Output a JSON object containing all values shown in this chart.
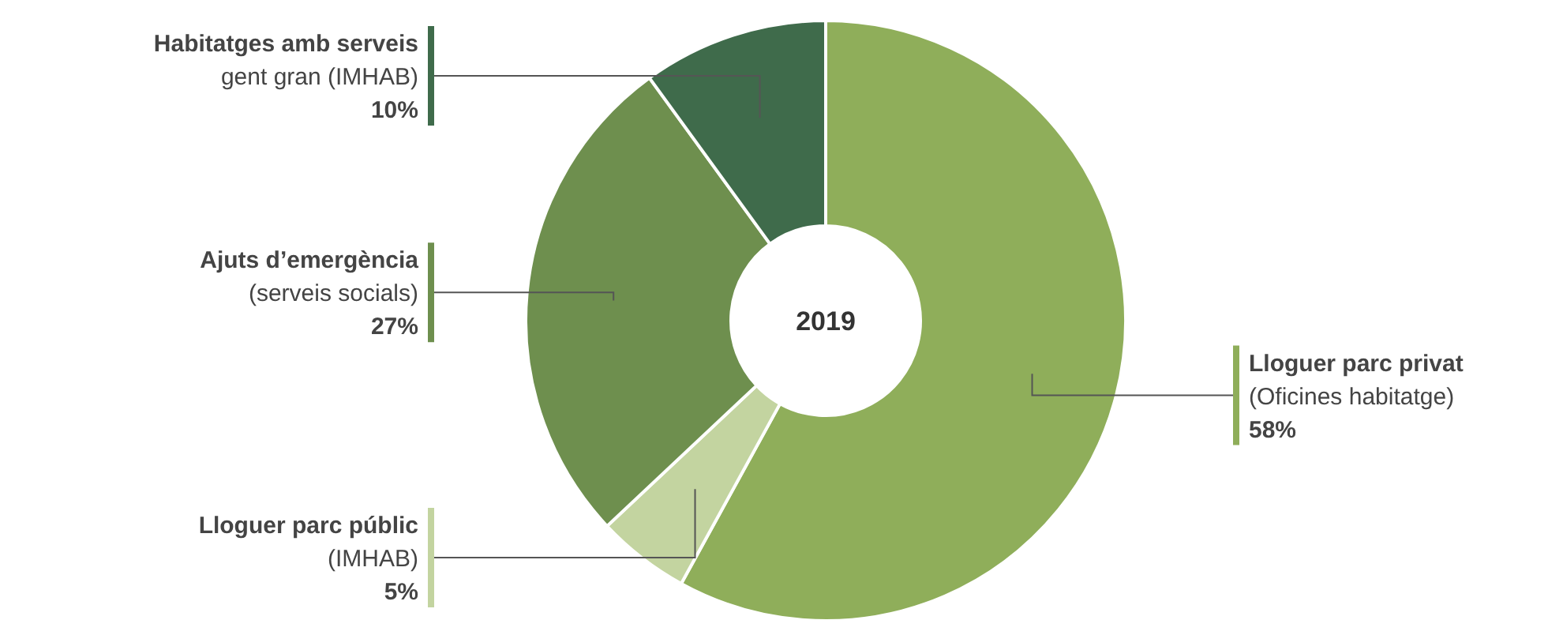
{
  "chart_data": {
    "type": "donut",
    "title": "2019",
    "categories": [
      "Lloguer parc privat (Oficines habitatge)",
      "Lloguer parc públic (IMHAB)",
      "Ajuts d’emergència (serveis socials)",
      "Habitatges amb serveis gent gran (IMHAB)"
    ],
    "values": [
      58,
      5,
      27,
      10
    ],
    "colors": [
      "#8fae5a",
      "#c3d4a0",
      "#6e8f4e",
      "#3f6b4b"
    ],
    "value_labels": [
      "58%",
      "5%",
      "27%",
      "10%"
    ]
  }
}
